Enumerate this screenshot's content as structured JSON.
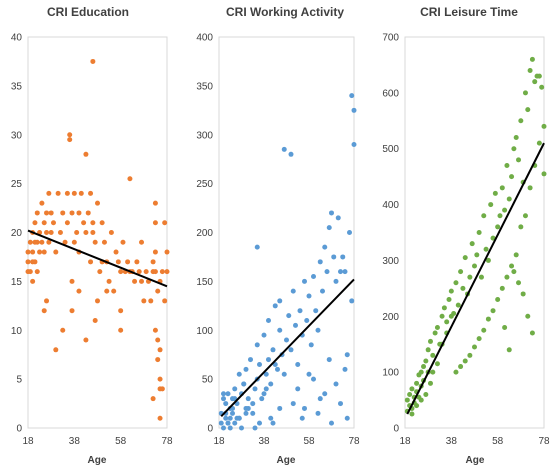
{
  "chart_data": [
    {
      "type": "scatter",
      "title": "CRI Education",
      "xlabel": "Age",
      "ylabel": "",
      "xlim": [
        18,
        78
      ],
      "ylim": [
        0,
        40
      ],
      "x_ticks": [
        18,
        38,
        58,
        78
      ],
      "y_ticks": [
        0,
        5,
        10,
        15,
        20,
        25,
        30,
        35,
        40
      ],
      "color": "#ed7d31",
      "grid": false,
      "trendline": {
        "x": [
          18,
          78
        ],
        "y": [
          20.2,
          14.5
        ]
      },
      "points": {
        "x": [
          18,
          18,
          19,
          19,
          20,
          20,
          20,
          21,
          21,
          21,
          22,
          22,
          23,
          23,
          24,
          24,
          25,
          25,
          26,
          26,
          27,
          27,
          28,
          28,
          29,
          30,
          31,
          32,
          33,
          34,
          35,
          35,
          36,
          36,
          37,
          38,
          38,
          39,
          40,
          40,
          41,
          42,
          43,
          43,
          44,
          45,
          45,
          46,
          46,
          47,
          48,
          49,
          50,
          50,
          51,
          52,
          53,
          54,
          55,
          56,
          57,
          58,
          59,
          60,
          61,
          62,
          63,
          64,
          65,
          66,
          67,
          68,
          69,
          70,
          71,
          72,
          73,
          74,
          75,
          76,
          77,
          18,
          20,
          22,
          25,
          26,
          30,
          33,
          37,
          37,
          40,
          43,
          46,
          47,
          48,
          52,
          58,
          58,
          62,
          67,
          72,
          72,
          73,
          73,
          73,
          73,
          74,
          74,
          75,
          75,
          76,
          75,
          75,
          77,
          78,
          78
        ],
        "y": [
          17,
          18,
          16,
          19,
          18,
          20,
          17,
          19,
          21,
          17,
          19,
          22,
          18,
          20,
          19,
          23,
          21,
          18,
          22,
          20,
          19,
          24,
          20,
          22,
          21,
          18,
          24,
          20,
          22,
          19,
          24,
          21,
          30,
          29.5,
          22,
          24,
          19,
          20,
          22,
          18,
          24,
          21,
          20,
          28,
          22,
          24,
          17,
          21,
          20,
          19,
          23,
          16,
          21,
          17,
          19,
          17,
          15,
          20,
          14,
          18,
          17,
          16,
          19,
          16,
          17,
          16,
          16,
          15,
          17,
          16,
          15,
          13,
          16,
          15,
          13,
          16,
          16,
          14,
          15,
          16,
          13,
          16,
          15,
          16,
          12,
          13,
          8,
          10,
          12,
          15,
          14,
          9,
          37.5,
          11,
          13,
          14,
          12,
          10,
          25.5,
          19,
          3,
          17,
          23,
          21,
          18,
          10,
          7,
          9,
          5,
          4,
          4,
          8,
          1,
          21,
          16,
          18
        ]
      }
    },
    {
      "type": "scatter",
      "title": "CRI Working Activity",
      "xlabel": "Age",
      "ylabel": "",
      "xlim": [
        18,
        78
      ],
      "ylim": [
        0,
        400
      ],
      "x_ticks": [
        18,
        38,
        58,
        78
      ],
      "y_ticks": [
        0,
        50,
        100,
        150,
        200,
        250,
        300,
        350,
        400
      ],
      "color": "#5b9bd5",
      "grid": false,
      "trendline": {
        "x": [
          19,
          78
        ],
        "y": [
          12,
          152
        ]
      },
      "points": {
        "x": [
          19,
          19,
          20,
          20,
          21,
          21,
          22,
          22,
          23,
          23,
          24,
          24,
          25,
          25,
          26,
          27,
          27,
          28,
          29,
          30,
          30,
          31,
          32,
          33,
          34,
          35,
          35,
          36,
          37,
          38,
          39,
          40,
          40,
          41,
          42,
          43,
          44,
          45,
          45,
          46,
          47,
          48,
          49,
          50,
          51,
          52,
          53,
          54,
          55,
          56,
          57,
          58,
          59,
          60,
          61,
          62,
          63,
          64,
          65,
          66,
          67,
          68,
          69,
          70,
          71,
          72,
          73,
          74,
          75,
          76,
          77,
          78,
          78,
          77,
          47,
          50,
          34,
          42,
          45,
          55,
          60,
          62,
          65,
          68,
          70,
          72,
          74,
          75,
          67,
          63,
          58,
          56,
          53,
          41,
          38,
          36,
          33,
          30,
          28,
          26,
          24,
          22,
          20,
          21,
          23,
          25,
          27,
          29,
          31,
          35,
          39,
          43,
          51
        ],
        "y": [
          5,
          15,
          0,
          30,
          10,
          25,
          5,
          35,
          20,
          10,
          30,
          15,
          40,
          5,
          25,
          55,
          10,
          35,
          45,
          20,
          60,
          30,
          70,
          15,
          40,
          85,
          50,
          65,
          30,
          95,
          55,
          70,
          110,
          45,
          80,
          125,
          60,
          100,
          130,
          75,
          55,
          90,
          115,
          80,
          140,
          105,
          65,
          120,
          95,
          150,
          110,
          135,
          85,
          155,
          120,
          100,
          170,
          140,
          185,
          160,
          205,
          220,
          175,
          150,
          215,
          160,
          175,
          160,
          75,
          200,
          340,
          290,
          325,
          130,
          285,
          280,
          0,
          5,
          20,
          10,
          50,
          15,
          35,
          5,
          45,
          25,
          60,
          10,
          70,
          30,
          55,
          20,
          40,
          10,
          35,
          5,
          25,
          15,
          0,
          10,
          20,
          5,
          35,
          15,
          0,
          30,
          10,
          45,
          20,
          185,
          40,
          65,
          25
        ]
      }
    },
    {
      "type": "scatter",
      "title": "CRI Leisure Time",
      "xlabel": "Age",
      "ylabel": "",
      "xlim": [
        18,
        78
      ],
      "ylim": [
        0,
        700
      ],
      "x_ticks": [
        18,
        38,
        58,
        78
      ],
      "y_ticks": [
        0,
        100,
        200,
        300,
        400,
        500,
        600,
        700
      ],
      "color": "#70ad47",
      "grid": false,
      "trendline": {
        "x": [
          19,
          78
        ],
        "y": [
          25,
          510
        ]
      },
      "points": {
        "x": [
          19,
          19,
          20,
          20,
          21,
          21,
          22,
          22,
          23,
          23,
          24,
          24,
          25,
          25,
          26,
          26,
          27,
          28,
          28,
          29,
          30,
          31,
          32,
          33,
          34,
          35,
          36,
          37,
          38,
          39,
          40,
          41,
          42,
          43,
          44,
          45,
          46,
          47,
          48,
          49,
          50,
          51,
          52,
          53,
          54,
          55,
          56,
          57,
          58,
          59,
          60,
          61,
          62,
          63,
          64,
          65,
          66,
          67,
          68,
          69,
          70,
          71,
          72,
          73,
          74,
          75,
          76,
          77,
          78,
          78,
          76,
          74,
          72,
          70,
          68,
          66,
          64,
          62,
          60,
          58,
          56,
          54,
          52,
          50,
          48,
          46,
          44,
          42,
          40,
          38,
          36,
          34,
          32,
          30,
          29,
          27,
          25,
          23,
          21,
          73,
          71,
          69,
          67,
          65,
          63,
          61
        ],
        "y": [
          30,
          50,
          40,
          60,
          35,
          70,
          55,
          45,
          80,
          65,
          95,
          55,
          75,
          100,
          85,
          110,
          120,
          140,
          100,
          155,
          130,
          170,
          180,
          150,
          200,
          215,
          190,
          230,
          245,
          205,
          260,
          220,
          280,
          250,
          305,
          240,
          270,
          330,
          290,
          310,
          350,
          270,
          380,
          320,
          300,
          400,
          340,
          420,
          360,
          380,
          430,
          390,
          470,
          410,
          450,
          500,
          520,
          480,
          550,
          440,
          600,
          570,
          640,
          660,
          620,
          630,
          630,
          610,
          540,
          455,
          510,
          470,
          430,
          380,
          360,
          310,
          290,
          270,
          250,
          230,
          210,
          195,
          175,
          160,
          145,
          130,
          120,
          110,
          100,
          200,
          170,
          150,
          115,
          100,
          80,
          60,
          50,
          40,
          25,
          170,
          200,
          240,
          260,
          280,
          140,
          180
        ]
      }
    }
  ]
}
